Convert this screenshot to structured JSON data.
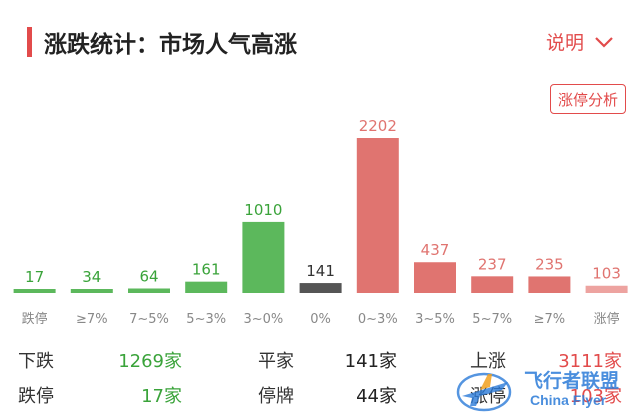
{
  "header": {
    "title": "涨跌统计：市场人气高涨",
    "explain_label": "说明",
    "analysis_button": "涨停分析"
  },
  "chart_data": {
    "type": "bar",
    "categories": [
      "跌停",
      "≥7%",
      "7~5%",
      "5~3%",
      "3~0%",
      "0%",
      "0~3%",
      "3~5%",
      "5~7%",
      "≥7%",
      "涨停"
    ],
    "values": [
      17,
      34,
      64,
      161,
      1010,
      141,
      2202,
      437,
      237,
      235,
      103
    ],
    "colors": [
      "#5cb85c",
      "#5cb85c",
      "#5cb85c",
      "#5cb85c",
      "#5cb85c",
      "#555555",
      "#e07470",
      "#e07470",
      "#e07470",
      "#e07470",
      "#eda3a0"
    ],
    "label_colors": [
      "#3aa33a",
      "#3aa33a",
      "#3aa33a",
      "#3aa33a",
      "#3aa33a",
      "#333333",
      "#e07470",
      "#e07470",
      "#e07470",
      "#e07470",
      "#e07470"
    ],
    "ylim": [
      0,
      2202
    ]
  },
  "stats": {
    "down_label": "下跌",
    "down_value": "1269家",
    "flat_label": "平家",
    "flat_value": "141家",
    "up_label": "上涨",
    "up_value": "3111家",
    "limit_down_label": "跌停",
    "limit_down_value": "17家",
    "suspended_label": "停牌",
    "suspended_value": "44家",
    "limit_up_label": "涨停",
    "limit_up_value": "103家"
  },
  "watermark": {
    "line1": "飞行者联盟",
    "line2": "China Flyer"
  },
  "colors": {
    "accent": "#e24b4b",
    "green": "#3aa33a",
    "red": "#e24b4b"
  }
}
